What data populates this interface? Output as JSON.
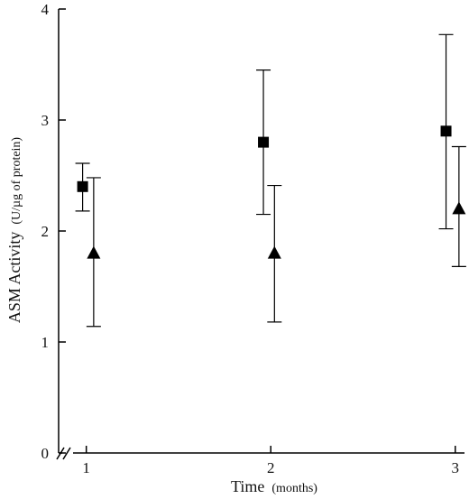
{
  "chart_data": {
    "type": "scatter",
    "title": "",
    "xlabel": {
      "main": "Time",
      "unit": "(months)"
    },
    "ylabel": {
      "main": "ASM Activity",
      "unit": "(U/µg of protein)"
    },
    "xlim": [
      0.85,
      3.05
    ],
    "ylim": [
      0,
      4
    ],
    "xticks": [
      1,
      2,
      3
    ],
    "yticks": [
      0,
      1,
      2,
      3,
      4
    ],
    "axis_break": "x",
    "grid": false,
    "legend": "none",
    "series": [
      {
        "marker": "square",
        "color": "#000000",
        "points": [
          {
            "x": 0.98,
            "y": 2.4,
            "err_low": 2.18,
            "err_high": 2.61
          },
          {
            "x": 1.96,
            "y": 2.8,
            "err_low": 2.15,
            "err_high": 3.45
          },
          {
            "x": 2.95,
            "y": 2.9,
            "err_low": 2.02,
            "err_high": 3.77
          }
        ]
      },
      {
        "marker": "triangle",
        "color": "#000000",
        "points": [
          {
            "x": 1.04,
            "y": 1.8,
            "err_low": 1.14,
            "err_high": 2.48
          },
          {
            "x": 2.02,
            "y": 1.8,
            "err_low": 1.18,
            "err_high": 2.41
          },
          {
            "x": 3.02,
            "y": 2.2,
            "err_low": 1.68,
            "err_high": 2.76
          }
        ]
      }
    ]
  }
}
